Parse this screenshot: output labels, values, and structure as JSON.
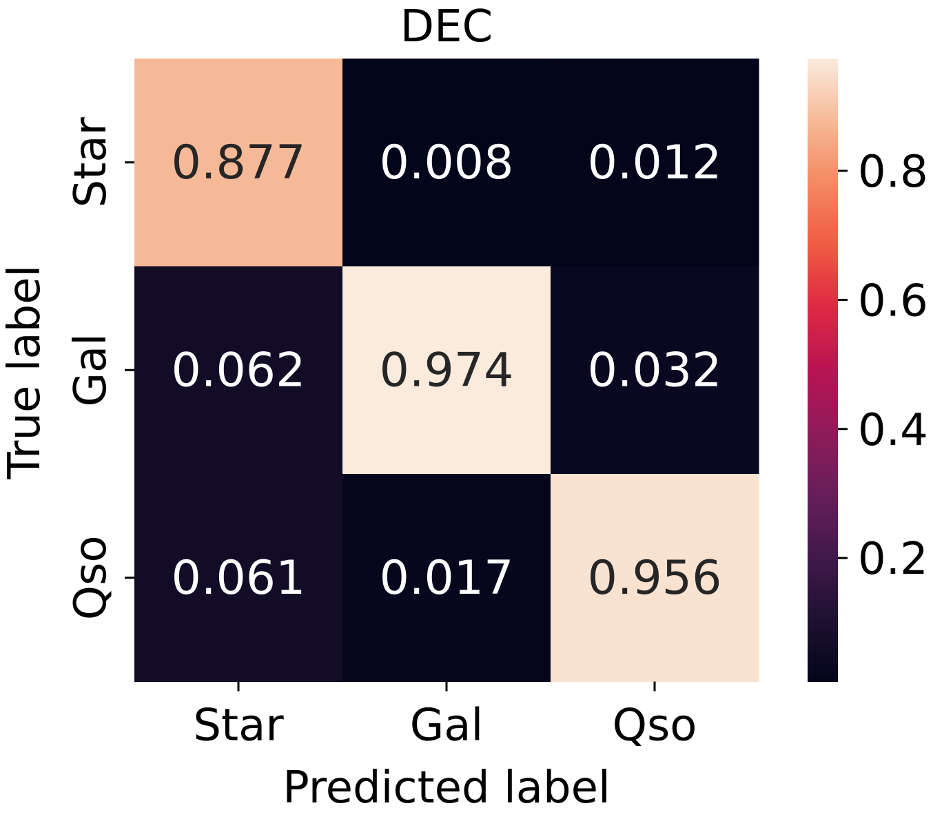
{
  "chart_data": {
    "type": "heatmap",
    "title": "DEC",
    "xlabel": "Predicted label",
    "ylabel": "True label",
    "x_categories": [
      "Star",
      "Gal",
      "Qso"
    ],
    "y_categories": [
      "Star",
      "Gal",
      "Qso"
    ],
    "values": [
      [
        0.877,
        0.008,
        0.012
      ],
      [
        0.062,
        0.974,
        0.032
      ],
      [
        0.061,
        0.017,
        0.956
      ]
    ],
    "value_labels": [
      [
        "0.877",
        "0.008",
        "0.012"
      ],
      [
        "0.062",
        "0.974",
        "0.032"
      ],
      [
        "0.061",
        "0.017",
        "0.956"
      ]
    ],
    "colorbar": {
      "range": [
        0.008,
        0.974
      ],
      "ticks": [
        0.2,
        0.4,
        0.6,
        0.8
      ],
      "tick_labels": [
        "0.2",
        "0.4",
        "0.6",
        "0.8"
      ]
    },
    "colormap": "rocket",
    "colors": {
      "dark_text": "#262626",
      "light_text": "#ffffff",
      "axis": "#000000"
    }
  }
}
